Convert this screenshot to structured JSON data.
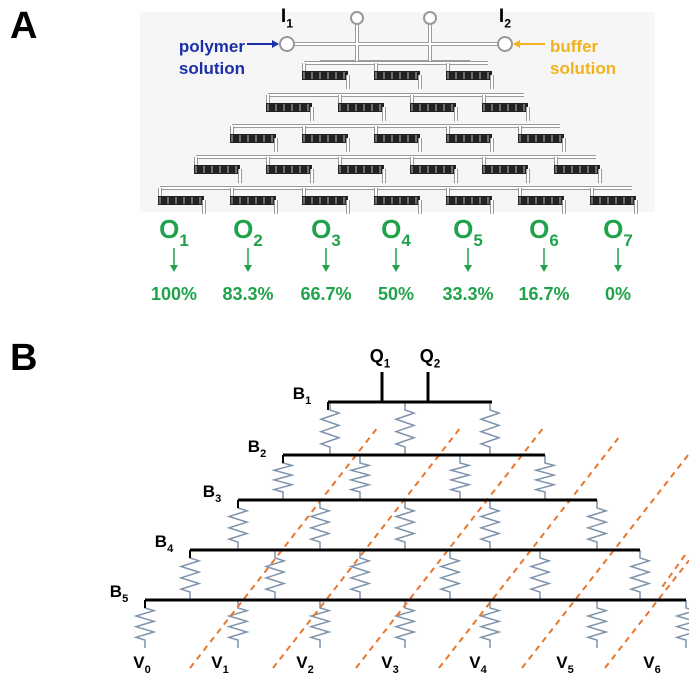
{
  "panel_a": {
    "label": "A",
    "inlets": [
      {
        "base": "I",
        "sub": "1"
      },
      {
        "base": "I",
        "sub": "2"
      }
    ],
    "polymer_note": [
      "polymer",
      "solution"
    ],
    "buffer_note": [
      "buffer",
      "solution"
    ],
    "outputs": [
      {
        "base": "O",
        "sub": "1",
        "percent": "100%"
      },
      {
        "base": "O",
        "sub": "2",
        "percent": "83.3%"
      },
      {
        "base": "O",
        "sub": "3",
        "percent": "66.7%"
      },
      {
        "base": "O",
        "sub": "4",
        "percent": "50%"
      },
      {
        "base": "O",
        "sub": "5",
        "percent": "33.3%"
      },
      {
        "base": "O",
        "sub": "6",
        "percent": "16.7%"
      },
      {
        "base": "O",
        "sub": "7",
        "percent": "0%"
      }
    ]
  },
  "panel_b": {
    "label": "B",
    "inputs": [
      {
        "base": "Q",
        "sub": "1"
      },
      {
        "base": "Q",
        "sub": "2"
      }
    ],
    "branches": [
      {
        "base": "B",
        "sub": "1"
      },
      {
        "base": "B",
        "sub": "2"
      },
      {
        "base": "B",
        "sub": "3"
      },
      {
        "base": "B",
        "sub": "4"
      },
      {
        "base": "B",
        "sub": "5"
      }
    ],
    "outputs": [
      {
        "base": "V",
        "sub": "0"
      },
      {
        "base": "V",
        "sub": "1"
      },
      {
        "base": "V",
        "sub": "2"
      },
      {
        "base": "V",
        "sub": "3"
      },
      {
        "base": "V",
        "sub": "4"
      },
      {
        "base": "V",
        "sub": "5"
      },
      {
        "base": "V",
        "sub": "6"
      }
    ]
  }
}
